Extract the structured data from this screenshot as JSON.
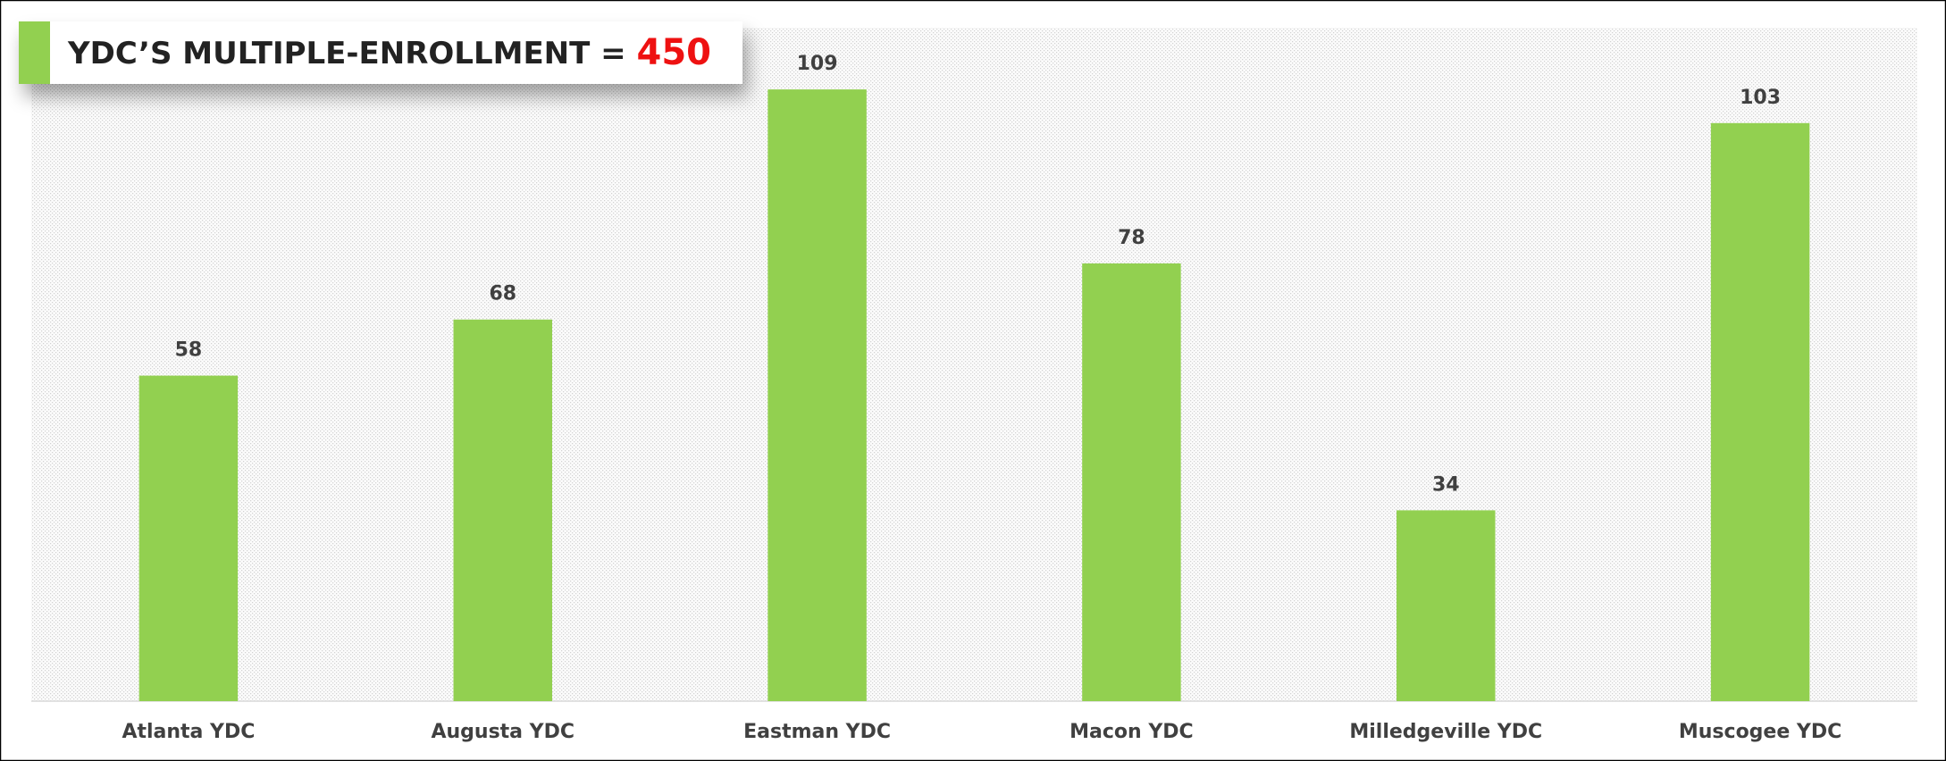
{
  "chart_data": {
    "type": "bar",
    "title": "YDC’S MULTIPLE-ENROLLMENT =",
    "title_value": 450,
    "categories": [
      "Atlanta YDC",
      "Augusta YDC",
      "Eastman YDC",
      "Macon YDC",
      "Milledgeville YDC",
      "Muscogee YDC"
    ],
    "values": [
      58,
      68,
      109,
      78,
      34,
      103
    ],
    "color": "#92d050",
    "ylim": [
      0,
      120
    ],
    "grid": false
  }
}
